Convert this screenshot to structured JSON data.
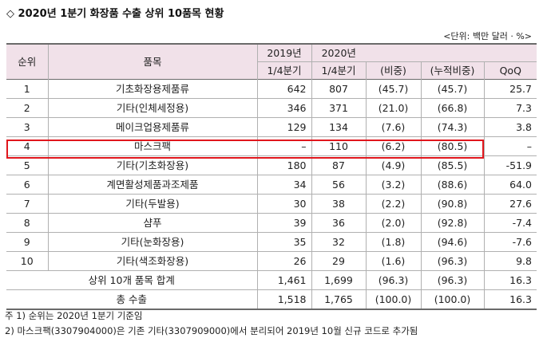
{
  "title": "◇ 2020년 1분기 화장품 수출 상위 10품목 현황",
  "unit": "<단위: 백만 달러 · %>",
  "headers": {
    "rank": "순위",
    "item": "품목",
    "y2019": "2019년",
    "y2020": "2020년",
    "q2019": "1/4분기",
    "q2020": "1/4분기",
    "share": "(비중)",
    "cum_share": "(누적비중)",
    "qoq": "QoQ"
  },
  "rows": [
    {
      "rank": "1",
      "item": "기초화장용제품류",
      "v2019": "642",
      "v2020": "807",
      "share": "(45.7)",
      "cum": "(45.7)",
      "qoq": "25.7"
    },
    {
      "rank": "2",
      "item": "기타(인체세정용)",
      "v2019": "346",
      "v2020": "371",
      "share": "(21.0)",
      "cum": "(66.8)",
      "qoq": "7.3"
    },
    {
      "rank": "3",
      "item": "메이크업용제품류",
      "v2019": "129",
      "v2020": "134",
      "share": "(7.6)",
      "cum": "(74.3)",
      "qoq": "3.8"
    },
    {
      "rank": "4",
      "item": "마스크팩",
      "v2019": "–",
      "v2020": "110",
      "share": "(6.2)",
      "cum": "(80.5)",
      "qoq": "–"
    },
    {
      "rank": "5",
      "item": "기타(기초화장용)",
      "v2019": "180",
      "v2020": "87",
      "share": "(4.9)",
      "cum": "(85.5)",
      "qoq": "-51.9"
    },
    {
      "rank": "6",
      "item": "계면활성제품과조제품",
      "v2019": "34",
      "v2020": "56",
      "share": "(3.2)",
      "cum": "(88.6)",
      "qoq": "64.0"
    },
    {
      "rank": "7",
      "item": "기타(두발용)",
      "v2019": "30",
      "v2020": "38",
      "share": "(2.2)",
      "cum": "(90.8)",
      "qoq": "27.6"
    },
    {
      "rank": "8",
      "item": "샴푸",
      "v2019": "39",
      "v2020": "36",
      "share": "(2.0)",
      "cum": "(92.8)",
      "qoq": "-7.4"
    },
    {
      "rank": "9",
      "item": "기타(눈화장용)",
      "v2019": "35",
      "v2020": "32",
      "share": "(1.8)",
      "cum": "(94.6)",
      "qoq": "-7.6"
    },
    {
      "rank": "10",
      "item": "기타(색조화장용)",
      "v2019": "26",
      "v2020": "29",
      "share": "(1.6)",
      "cum": "(96.3)",
      "qoq": "9.8"
    }
  ],
  "totals": [
    {
      "label": "상위 10개 품목 합계",
      "v2019": "1,461",
      "v2020": "1,699",
      "share": "(96.3)",
      "cum": "(96.3)",
      "qoq": "16.3"
    },
    {
      "label": "총 수출",
      "v2019": "1,518",
      "v2020": "1,765",
      "share": "(100.0)",
      "cum": "(100.0)",
      "qoq": "16.3"
    }
  ],
  "notes": [
    "주 1) 순위는 2020년 1분기 기준임",
    "2) 마스크팩(3307904000)은 기존 기타(3307909000)에서 분리되어 2019년 10월 신규 코드로 추가됨"
  ],
  "colors": {
    "header_bg": "#f1e1e9",
    "highlight_border": "#e0161c"
  }
}
